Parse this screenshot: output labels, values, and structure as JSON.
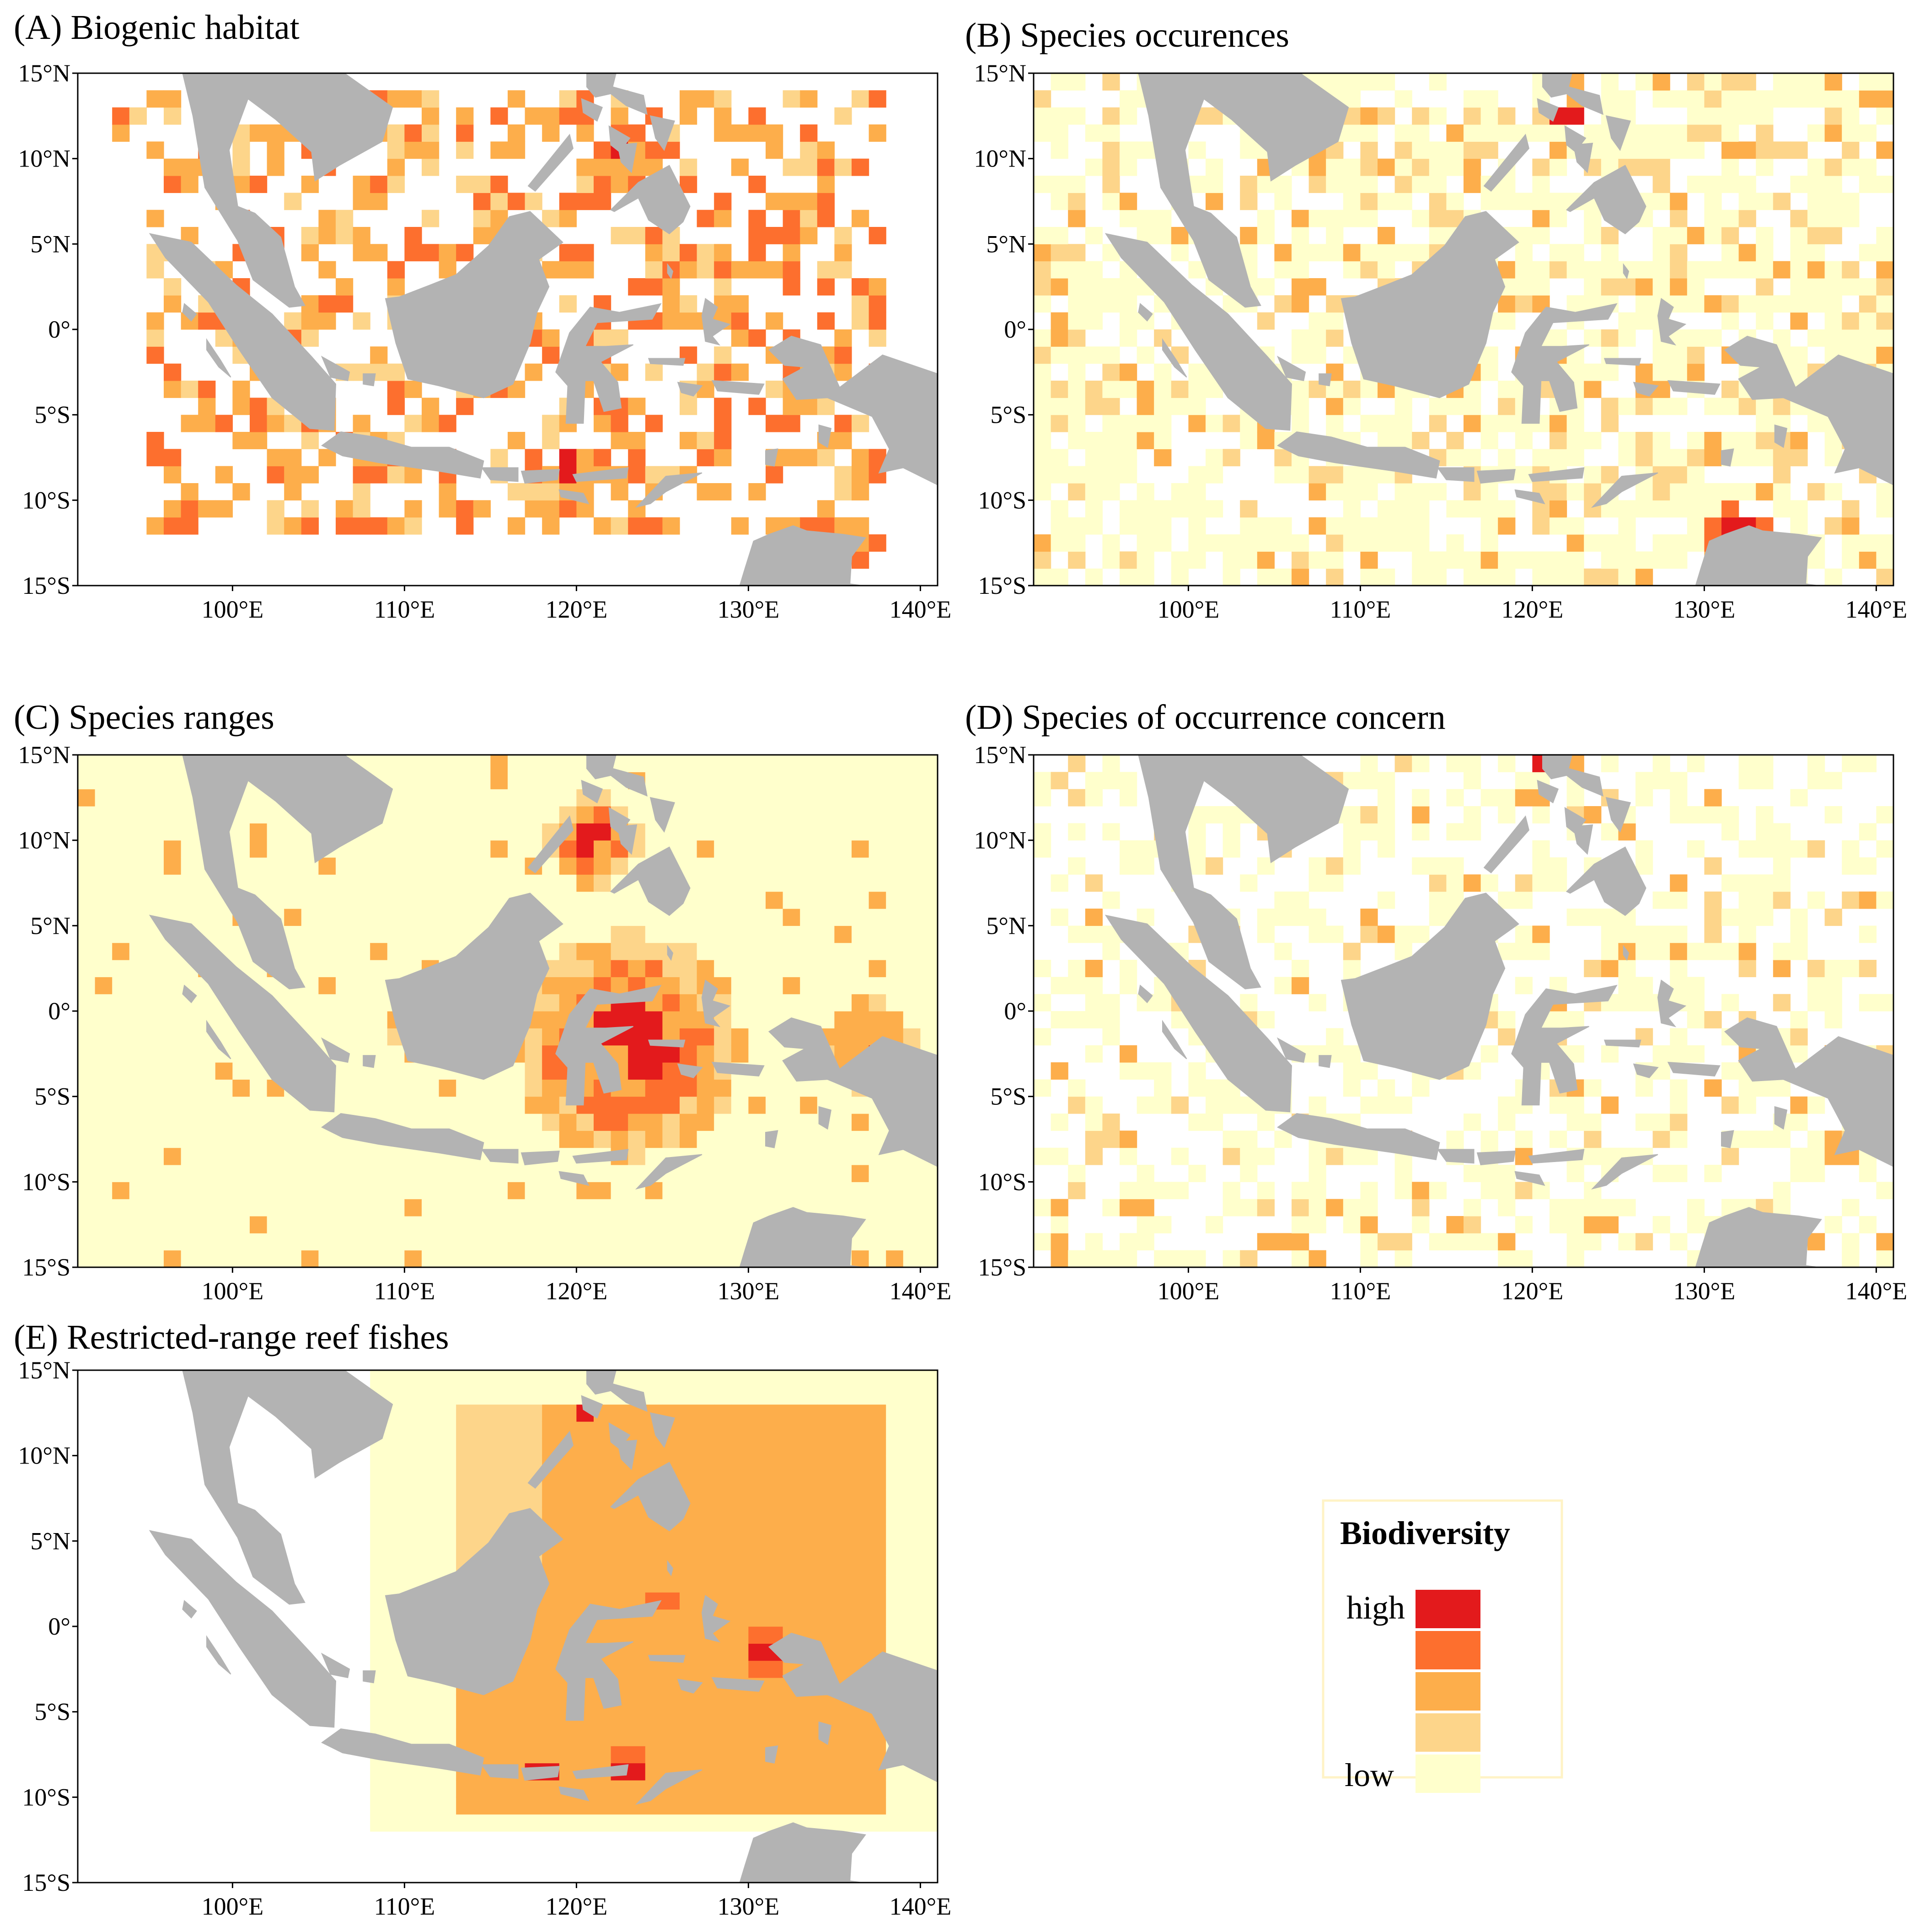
{
  "figure": {
    "panels": [
      {
        "id": "A",
        "title": "(A) Biogenic habitat",
        "pattern": "habitat"
      },
      {
        "id": "B",
        "title": "(B) Species occurences",
        "pattern": "occurrence"
      },
      {
        "id": "C",
        "title": "(C) Species ranges",
        "pattern": "ranges"
      },
      {
        "id": "D",
        "title": "(D) Species of occurrence concern",
        "pattern": "concern"
      },
      {
        "id": "E",
        "title": "(E) Restricted-range reef fishes",
        "pattern": "restricted"
      }
    ],
    "lat_ticks": [
      "15°N",
      "10°N",
      "5°N",
      "0°",
      "5°S",
      "10°S",
      "15°S"
    ],
    "lon_ticks": [
      "100°E",
      "110°E",
      "120°E",
      "130°E",
      "140°E"
    ],
    "lat_range": [
      -15,
      15
    ],
    "lon_range": [
      91,
      141
    ]
  },
  "legend": {
    "title": "Biodiversity",
    "high_label": "high",
    "low_label": "low",
    "levels": [
      "#e31a1c",
      "#fd6f2e",
      "#fdae4b",
      "#fdd58a",
      "#ffffcc"
    ]
  },
  "colors": {
    "land": "#b3b3b3",
    "background": "#ffffff"
  }
}
